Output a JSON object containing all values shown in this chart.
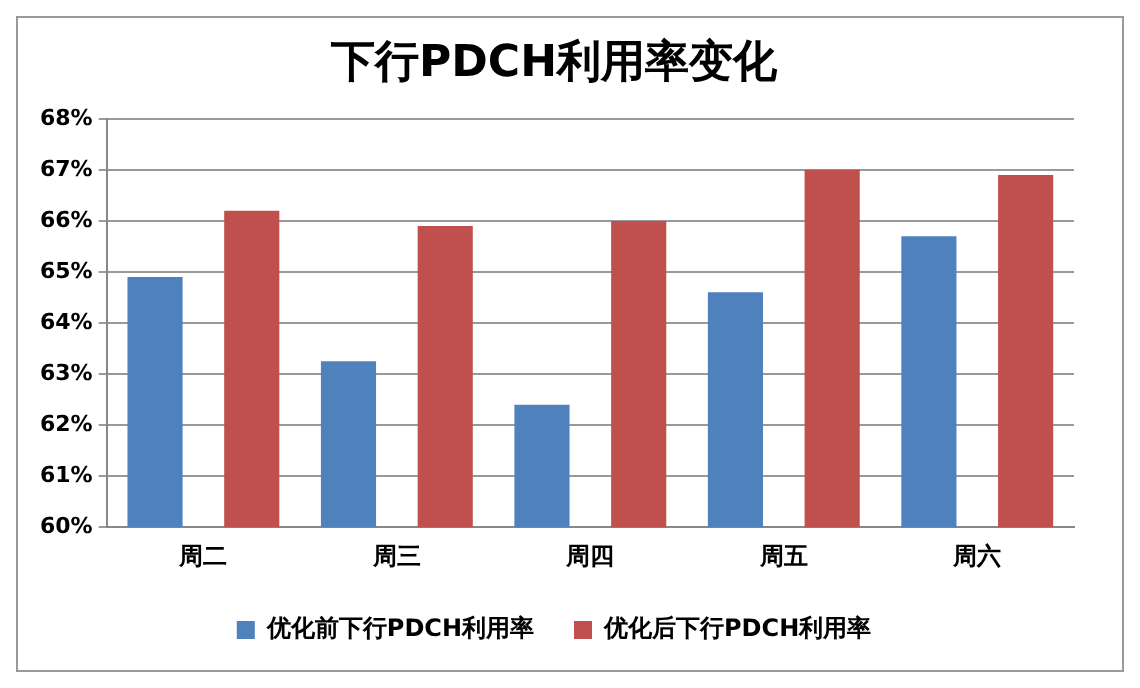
{
  "chart_data": {
    "type": "bar",
    "title": "下行PDCH利用率变化",
    "categories": [
      "周二",
      "周三",
      "周四",
      "周五",
      "周六"
    ],
    "series": [
      {
        "name": "优化前下行PDCH利用率",
        "color": "#4f81bd",
        "values": [
          64.9,
          63.25,
          62.4,
          64.6,
          65.7
        ]
      },
      {
        "name": "优化后下行PDCH利用率",
        "color": "#c0504d",
        "values": [
          66.2,
          65.9,
          66.0,
          67.0,
          66.9
        ]
      }
    ],
    "ylim": [
      60,
      68
    ],
    "yticks": [
      {
        "value": 60,
        "label": "60%"
      },
      {
        "value": 61,
        "label": "61%"
      },
      {
        "value": 62,
        "label": "62%"
      },
      {
        "value": 63,
        "label": "63%"
      },
      {
        "value": 64,
        "label": "64%"
      },
      {
        "value": 65,
        "label": "65%"
      },
      {
        "value": 66,
        "label": "66%"
      },
      {
        "value": 67,
        "label": "67%"
      },
      {
        "value": 68,
        "label": "68%"
      }
    ],
    "grid": "y",
    "legend": "bottom"
  }
}
